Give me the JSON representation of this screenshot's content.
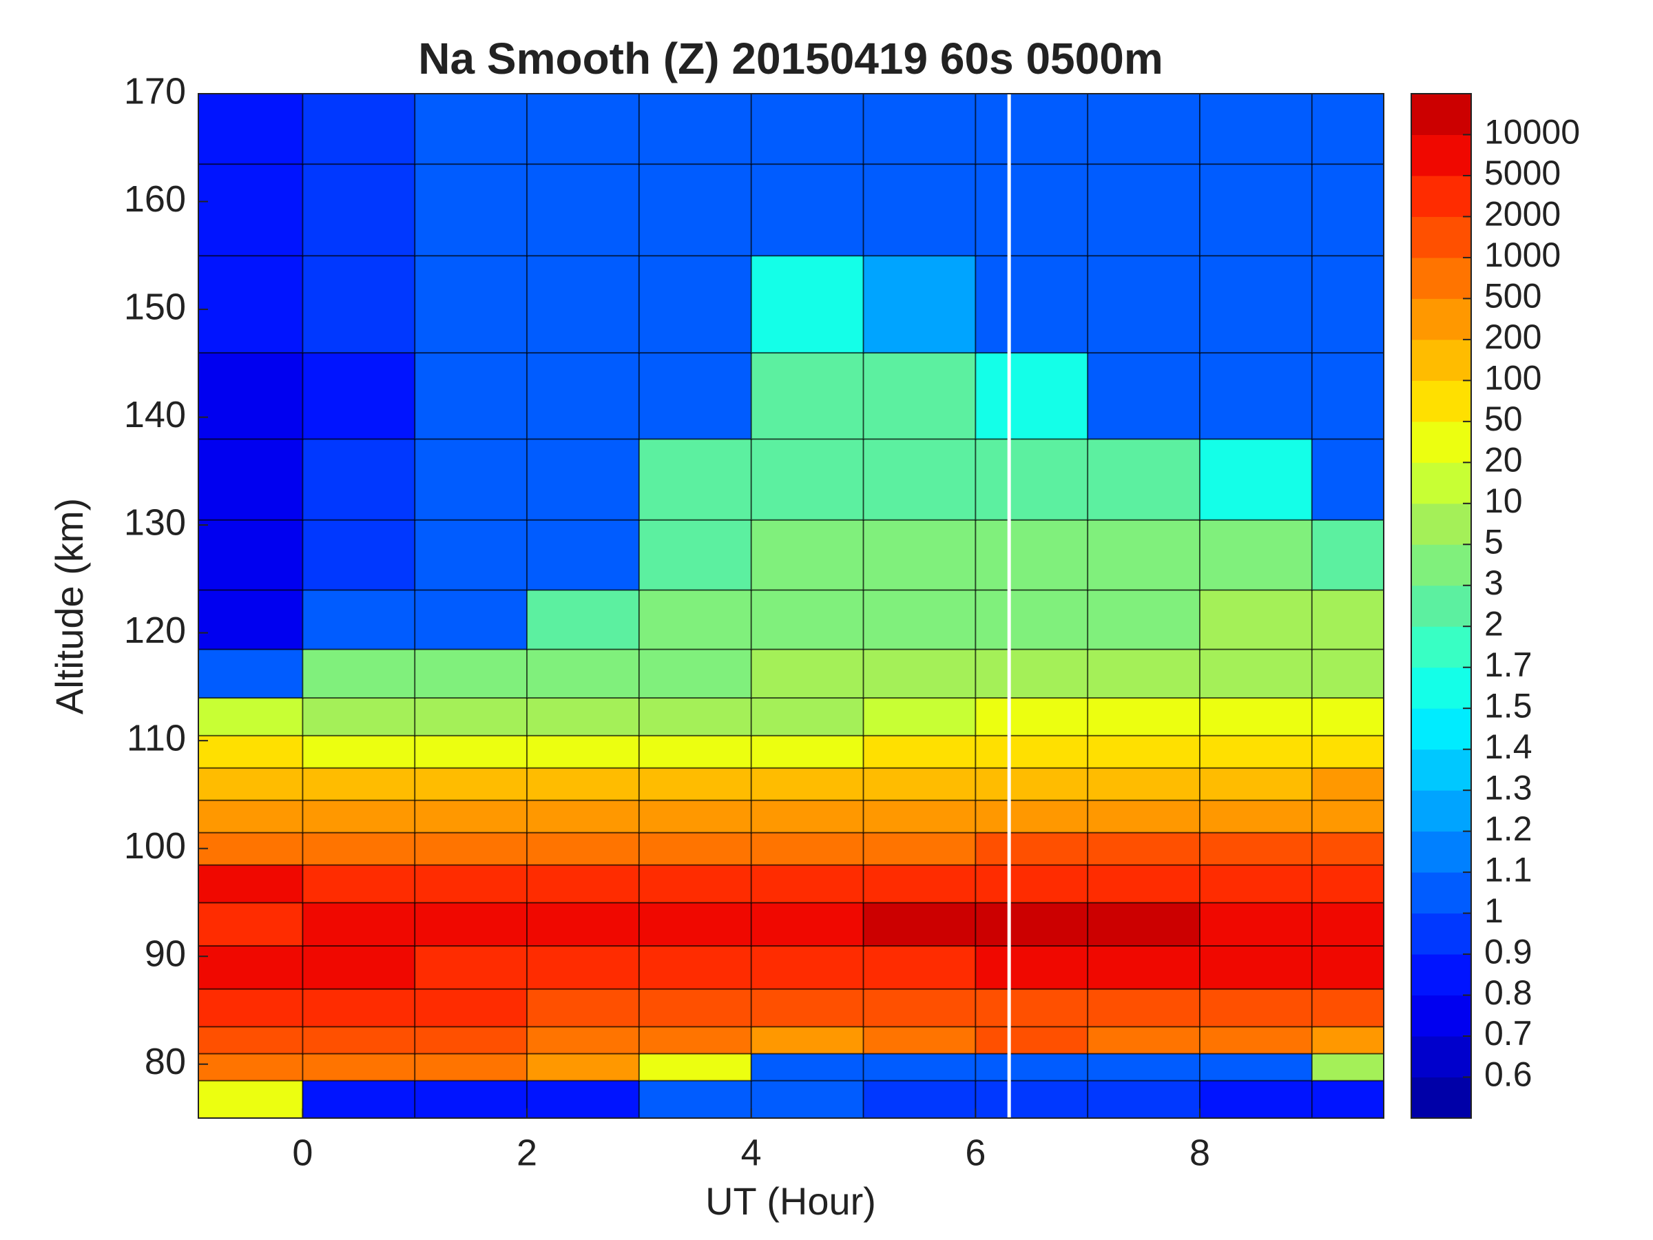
{
  "chart_data": {
    "type": "contour",
    "title": "Na Smooth (Z)  20150419 60s 0500m",
    "x_label": "UT (Hour)",
    "y_label": "Altitude (km)",
    "xlim": [
      -0.93,
      9.64
    ],
    "ylim": [
      75,
      170
    ],
    "xticks": [
      0,
      2,
      4,
      6,
      8
    ],
    "yticks": [
      80,
      90,
      100,
      110,
      120,
      130,
      140,
      150,
      160,
      170
    ],
    "gap_x": 6.3,
    "x": [
      -0.5,
      0.5,
      1.5,
      2.5,
      3.5,
      4.5,
      5.5,
      6.5,
      7.5,
      8.5,
      9.5
    ],
    "y": [
      77,
      80,
      82,
      85,
      89,
      93,
      97,
      100,
      103,
      106,
      109,
      112,
      116,
      121,
      127,
      134,
      142,
      150,
      160,
      167
    ],
    "z": [
      [
        20,
        0.8,
        0.8,
        0.8,
        1,
        1,
        0.9,
        0.9,
        0.9,
        0.8,
        0.8
      ],
      [
        500,
        500,
        500,
        400,
        30,
        1,
        1,
        1,
        1,
        1,
        5
      ],
      [
        1000,
        1000,
        1000,
        800,
        500,
        200,
        500,
        1000,
        500,
        500,
        300
      ],
      [
        2000,
        2000,
        2000,
        1500,
        1000,
        1000,
        1000,
        1000,
        1000,
        1000,
        1000
      ],
      [
        5000,
        5000,
        3000,
        2000,
        3000,
        3000,
        3000,
        5000,
        5000,
        5000,
        5000
      ],
      [
        3000,
        5000,
        5000,
        5000,
        6000,
        6000,
        11000,
        11000,
        11000,
        5000,
        5000
      ],
      [
        6000,
        3000,
        3000,
        3000,
        3000,
        3000,
        3000,
        3000,
        3000,
        3000,
        3000
      ],
      [
        800,
        800,
        800,
        800,
        800,
        800,
        800,
        1500,
        1500,
        1500,
        1500
      ],
      [
        300,
        300,
        300,
        300,
        300,
        300,
        300,
        300,
        300,
        300,
        300
      ],
      [
        150,
        150,
        150,
        100,
        100,
        100,
        100,
        100,
        150,
        100,
        250
      ],
      [
        60,
        40,
        30,
        20,
        30,
        40,
        60,
        70,
        70,
        70,
        60
      ],
      [
        15,
        8,
        6,
        5,
        6,
        8,
        10,
        30,
        40,
        40,
        30
      ],
      [
        1,
        3,
        3,
        3,
        4,
        5,
        6,
        8,
        8,
        8,
        8
      ],
      [
        0.7,
        1,
        1,
        2,
        3,
        3,
        4,
        4,
        4,
        5,
        5
      ],
      [
        0.7,
        0.9,
        1,
        1,
        2,
        3,
        3,
        3,
        3,
        3,
        2
      ],
      [
        0.7,
        0.9,
        1,
        1,
        2,
        2.5,
        2.5,
        2,
        2,
        1.5,
        1
      ],
      [
        0.7,
        0.8,
        1,
        1,
        1,
        2,
        2,
        1.5,
        1,
        1,
        1
      ],
      [
        0.8,
        0.9,
        1,
        1,
        1,
        1.5,
        1.2,
        1,
        1,
        1,
        1
      ],
      [
        0.8,
        0.9,
        1,
        1,
        1,
        1,
        1,
        1,
        1,
        1,
        1
      ],
      [
        0.8,
        0.9,
        1,
        1,
        1,
        1,
        1,
        1,
        1,
        1,
        1
      ]
    ],
    "colorbar": {
      "levels": [
        0.6,
        0.7,
        0.8,
        0.9,
        1,
        1.1,
        1.2,
        1.3,
        1.4,
        1.5,
        1.7,
        2,
        3,
        5,
        10,
        20,
        50,
        100,
        200,
        500,
        1000,
        2000,
        5000,
        10000
      ],
      "colors": [
        "#0000a8",
        "#0000cc",
        "#0000f0",
        "#0014ff",
        "#0038ff",
        "#005cff",
        "#0080ff",
        "#00a4ff",
        "#00c8ff",
        "#00ecff",
        "#14ffe8",
        "#38ffc4",
        "#5cf0a0",
        "#80f07c",
        "#a4f058",
        "#c8ff34",
        "#ecff10",
        "#ffe000",
        "#ffbc00",
        "#ff9800",
        "#ff7400",
        "#ff5000",
        "#ff2c00",
        "#f00800",
        "#cc0000"
      ]
    }
  }
}
